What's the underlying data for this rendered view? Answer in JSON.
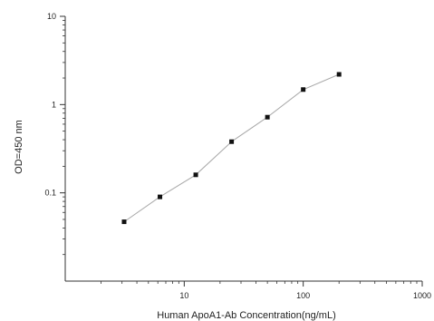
{
  "chart_data": {
    "type": "line",
    "title": "",
    "xlabel": "Human ApoA1-Ab Concentration(ng/mL)",
    "ylabel": "OD=450 nm",
    "xscale": "log",
    "yscale": "log",
    "xlim": [
      1,
      1000
    ],
    "ylim": [
      0.01,
      10
    ],
    "x_ticks": [
      {
        "value": 10,
        "label": "10"
      },
      {
        "value": 100,
        "label": "100"
      },
      {
        "value": 1000,
        "label": "1000"
      }
    ],
    "y_ticks": [
      {
        "value": 0.1,
        "label": "0.1"
      },
      {
        "value": 1,
        "label": "1"
      },
      {
        "value": 10,
        "label": "10"
      }
    ],
    "grid": false,
    "legend": "none",
    "series": [
      {
        "x": [
          3.125,
          6.25,
          12.5,
          25,
          50,
          100,
          200
        ],
        "y": [
          0.047,
          0.09,
          0.16,
          0.38,
          0.72,
          1.48,
          2.2
        ],
        "marker": "square",
        "line_color": "#a8a8a8",
        "marker_color": "#111111"
      }
    ]
  }
}
